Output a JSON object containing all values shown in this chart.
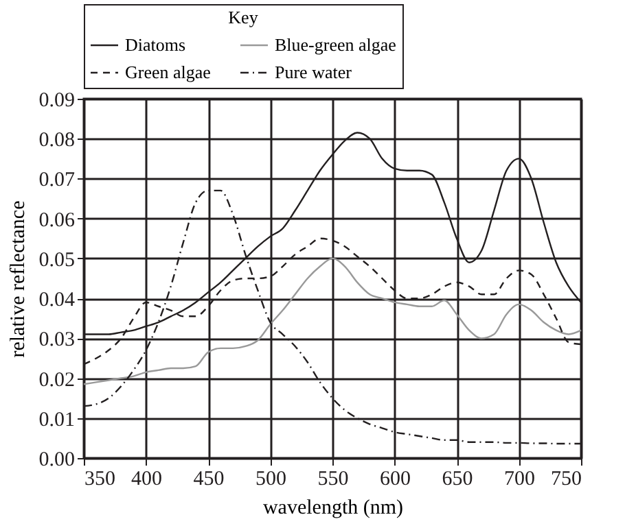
{
  "chart_data": {
    "type": "line",
    "xlabel": "wavelength (nm)",
    "ylabel": "relative reflectance",
    "legend_title": "Key",
    "legend": "top",
    "grid": true,
    "x": [
      350,
      360,
      370,
      380,
      390,
      400,
      410,
      420,
      430,
      440,
      450,
      460,
      470,
      480,
      490,
      500,
      510,
      520,
      530,
      540,
      550,
      560,
      570,
      580,
      590,
      600,
      610,
      620,
      630,
      640,
      650,
      660,
      670,
      680,
      690,
      700,
      710,
      720,
      730,
      740,
      750
    ],
    "xlim": [
      350,
      750
    ],
    "xticks": [
      350,
      400,
      450,
      500,
      550,
      600,
      650,
      700,
      750
    ],
    "ylim": [
      0,
      0.09
    ],
    "yticks": [
      {
        "value": 0,
        "label": "0.00"
      },
      0.01,
      0.02,
      0.03,
      0.04,
      0.05,
      0.06,
      0.07,
      0.08,
      0.09
    ],
    "series": [
      {
        "name": "Diatoms",
        "color": "#231f20",
        "line_style": "solid",
        "values": [
          0.031,
          0.031,
          0.031,
          0.0315,
          0.032,
          0.033,
          0.034,
          0.0355,
          0.037,
          0.039,
          0.0415,
          0.044,
          0.047,
          0.05,
          0.053,
          0.0555,
          0.0575,
          0.062,
          0.067,
          0.072,
          0.076,
          0.0795,
          0.0815,
          0.08,
          0.075,
          0.0725,
          0.072,
          0.072,
          0.071,
          0.064,
          0.055,
          0.049,
          0.052,
          0.062,
          0.072,
          0.075,
          0.07,
          0.059,
          0.049,
          0.043,
          0.039
        ]
      },
      {
        "name": "Blue-green algae",
        "color": "#999999",
        "line_style": "solid",
        "values": [
          0.0185,
          0.019,
          0.0195,
          0.02,
          0.0205,
          0.0215,
          0.022,
          0.0225,
          0.0225,
          0.023,
          0.0265,
          0.0275,
          0.0275,
          0.028,
          0.0295,
          0.0335,
          0.037,
          0.041,
          0.045,
          0.048,
          0.05,
          0.048,
          0.044,
          0.041,
          0.04,
          0.039,
          0.0385,
          0.038,
          0.038,
          0.0395,
          0.036,
          0.032,
          0.03,
          0.031,
          0.036,
          0.0385,
          0.037,
          0.034,
          0.032,
          0.031,
          0.032
        ]
      },
      {
        "name": "Green algae",
        "color": "#231f20",
        "line_style": "dashed",
        "values": [
          0.0235,
          0.025,
          0.027,
          0.03,
          0.035,
          0.039,
          0.038,
          0.037,
          0.0355,
          0.0355,
          0.038,
          0.042,
          0.0445,
          0.045,
          0.045,
          0.0455,
          0.048,
          0.051,
          0.053,
          0.055,
          0.0545,
          0.053,
          0.0505,
          0.048,
          0.045,
          0.042,
          0.04,
          0.04,
          0.041,
          0.043,
          0.044,
          0.043,
          0.041,
          0.041,
          0.045,
          0.047,
          0.046,
          0.041,
          0.035,
          0.029,
          0.0285
        ]
      },
      {
        "name": "Pure water",
        "color": "#231f20",
        "line_style": "dashdot",
        "values": [
          0.013,
          0.0135,
          0.015,
          0.018,
          0.022,
          0.027,
          0.034,
          0.043,
          0.054,
          0.064,
          0.067,
          0.067,
          0.061,
          0.051,
          0.042,
          0.034,
          0.031,
          0.028,
          0.024,
          0.019,
          0.015,
          0.012,
          0.01,
          0.0085,
          0.0075,
          0.0065,
          0.006,
          0.0055,
          0.005,
          0.0045,
          0.0045,
          0.004,
          0.004,
          0.004,
          0.0038,
          0.0038,
          0.0037,
          0.0037,
          0.0036,
          0.0036,
          0.0036
        ]
      }
    ]
  }
}
